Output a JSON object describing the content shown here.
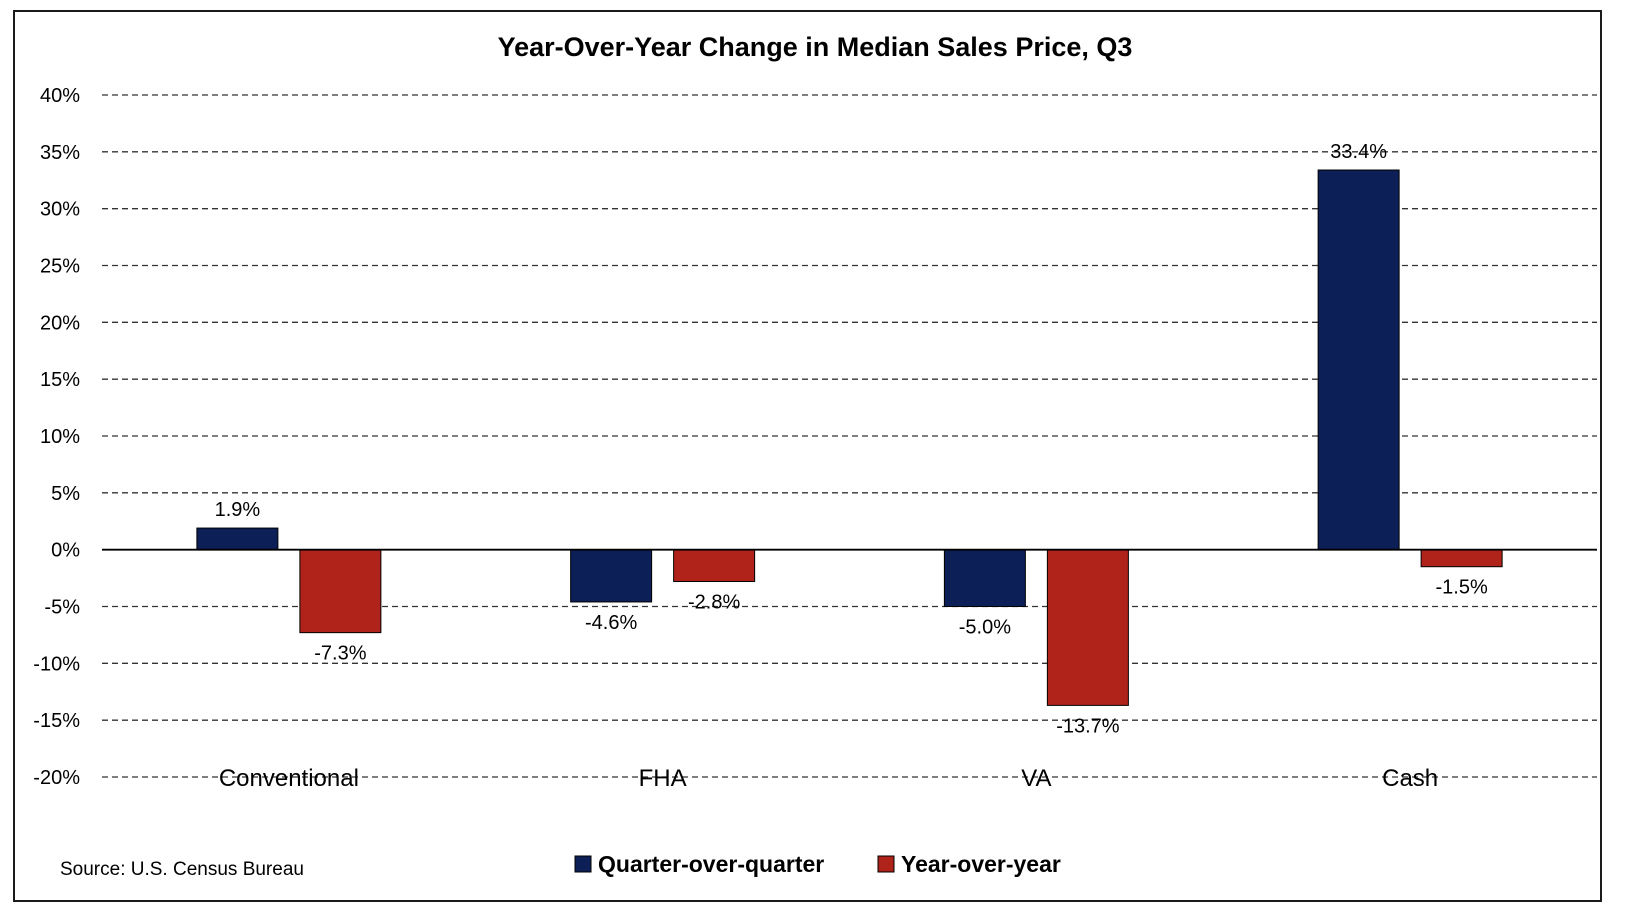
{
  "chart_data": {
    "type": "bar",
    "title": "Year-Over-Year Change in Median Sales Price, Q3",
    "source": "Source: U.S. Census Bureau",
    "xlabel": "",
    "ylabel": "",
    "categories": [
      "Conventional",
      "FHA",
      "VA",
      "Cash"
    ],
    "ylim": [
      -20,
      40
    ],
    "yticks": [
      40,
      35,
      30,
      25,
      20,
      15,
      10,
      5,
      0,
      -5,
      -10,
      -15,
      -20
    ],
    "ytick_labels": [
      "40%",
      "35%",
      "30%",
      "25%",
      "20%",
      "15%",
      "10%",
      "5%",
      "0%",
      "-5%",
      "-10%",
      "-15%",
      "-20%"
    ],
    "grid": true,
    "grid_style": "dashed",
    "legend_position": "bottom",
    "series": [
      {
        "name": "Quarter-over-quarter",
        "color": "#0c1f56",
        "values": [
          1.9,
          -4.6,
          -5.0,
          33.4
        ],
        "labels": [
          "1.9%",
          "-4.6%",
          "-5.0%",
          "33.4%"
        ]
      },
      {
        "name": "Year-over-year",
        "color": "#b0231a",
        "values": [
          -7.3,
          -2.8,
          -13.7,
          -1.5
        ],
        "labels": [
          "-7.3%",
          "-2.8%",
          "-13.7%",
          "-1.5%"
        ]
      }
    ]
  }
}
